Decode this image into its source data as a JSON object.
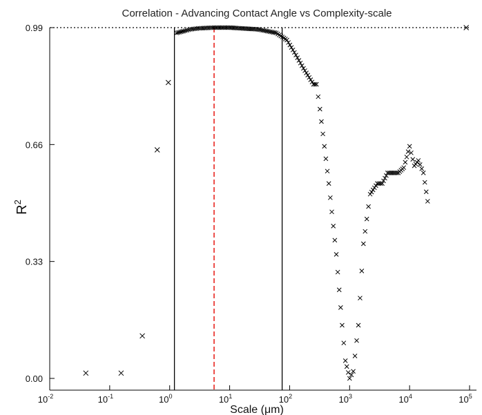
{
  "chart_data": {
    "type": "scatter",
    "title": "Correlation - Advancing Contact Angle vs Complexity-scale",
    "xlabel": "Scale (μm)",
    "ylabel": "R",
    "ylabel_superscript": "2",
    "x_scale": "log",
    "xlim": [
      0.01,
      100000
    ],
    "ylim": [
      0,
      0.99
    ],
    "x_ticks": [
      {
        "base": "10",
        "exp": "-2",
        "value": 0.01
      },
      {
        "base": "10",
        "exp": "-1",
        "value": 0.1
      },
      {
        "base": "10",
        "exp": "0",
        "value": 1
      },
      {
        "base": "10",
        "exp": "1",
        "value": 10
      },
      {
        "base": "10",
        "exp": "2",
        "value": 100
      },
      {
        "base": "10",
        "exp": "3",
        "value": 1000
      },
      {
        "base": "10",
        "exp": "4",
        "value": 10000
      },
      {
        "base": "10",
        "exp": "5",
        "value": 100000
      }
    ],
    "y_ticks": [
      {
        "label": "0.00",
        "value": 0.0
      },
      {
        "label": "0.33",
        "value": 0.33
      },
      {
        "label": "0.66",
        "value": 0.66
      },
      {
        "label": "0.99",
        "value": 0.99
      }
    ],
    "marker": "x",
    "marker_color": "#000000",
    "grid": false,
    "reference_lines": [
      {
        "orientation": "horizontal",
        "value": 0.99,
        "style": "dotted",
        "color": "#000000"
      },
      {
        "orientation": "vertical",
        "value": 1.2,
        "style": "solid",
        "color": "#000000"
      },
      {
        "orientation": "vertical",
        "value": 5.5,
        "style": "dashed",
        "color": "#e8231e"
      },
      {
        "orientation": "vertical",
        "value": 75,
        "style": "solid",
        "color": "#000000"
      }
    ],
    "anchor_points": [
      [
        0.04,
        0.015
      ],
      [
        0.155,
        0.015
      ],
      [
        0.35,
        0.12
      ],
      [
        0.62,
        0.645
      ],
      [
        0.95,
        0.835
      ],
      [
        1.3,
        0.975
      ],
      [
        1.7,
        0.98
      ],
      [
        2.2,
        0.985
      ],
      [
        3.0,
        0.988
      ],
      [
        5.5,
        0.99
      ],
      [
        10,
        0.99
      ],
      [
        30,
        0.985
      ],
      [
        60,
        0.975
      ],
      [
        90,
        0.955
      ],
      [
        120,
        0.92
      ],
      [
        170,
        0.875
      ],
      [
        250,
        0.83
      ],
      [
        280,
        0.83
      ],
      [
        320,
        0.76
      ],
      [
        450,
        0.55
      ],
      [
        600,
        0.35
      ],
      [
        750,
        0.15
      ],
      [
        850,
        0.05
      ],
      [
        1000,
        0.0
      ],
      [
        1150,
        0.02
      ],
      [
        1400,
        0.15
      ],
      [
        1700,
        0.38
      ],
      [
        2200,
        0.52
      ],
      [
        2900,
        0.55
      ],
      [
        3500,
        0.55
      ],
      [
        4300,
        0.58
      ],
      [
        6500,
        0.58
      ],
      [
        8000,
        0.595
      ],
      [
        10000,
        0.655
      ],
      [
        12000,
        0.6
      ],
      [
        14000,
        0.615
      ],
      [
        17000,
        0.58
      ],
      [
        20000,
        0.5
      ],
      [
        88000,
        0.99
      ]
    ]
  }
}
